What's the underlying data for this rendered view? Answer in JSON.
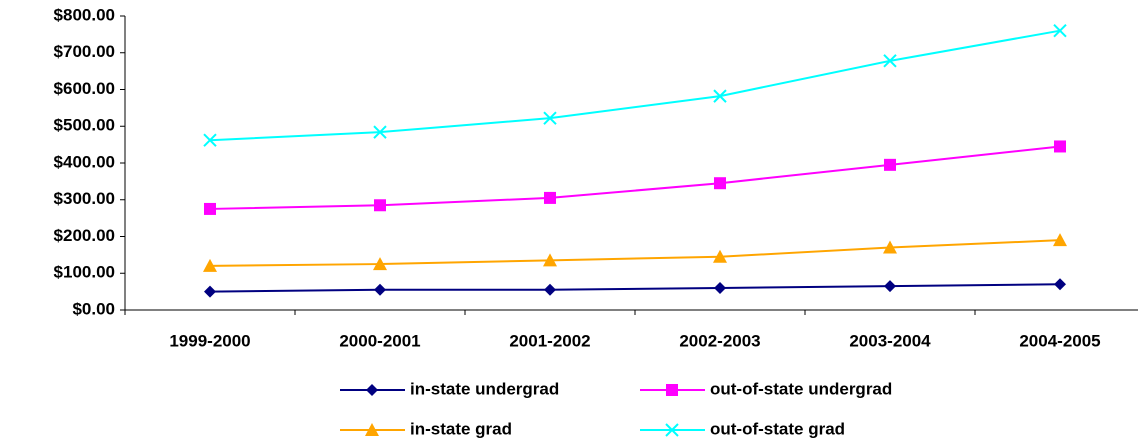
{
  "chart_data": {
    "type": "line",
    "categories": [
      "1999-2000",
      "2000-2001",
      "2001-2002",
      "2002-2003",
      "2003-2004",
      "2004-2005"
    ],
    "series": [
      {
        "name": "in-state undergrad",
        "color": "#000080",
        "marker": "diamond",
        "values": [
          50,
          55,
          55,
          60,
          65,
          70
        ]
      },
      {
        "name": "out-of-state undergrad",
        "color": "#ff00ff",
        "marker": "square",
        "values": [
          275,
          285,
          305,
          345,
          395,
          445
        ]
      },
      {
        "name": "in-state grad",
        "color": "#ffa500",
        "marker": "triangle",
        "values": [
          120,
          125,
          135,
          145,
          170,
          190
        ]
      },
      {
        "name": "out-of-state grad",
        "color": "#00ffff",
        "marker": "x",
        "values": [
          462,
          484,
          522,
          582,
          678,
          760
        ]
      }
    ],
    "ylim": [
      0,
      800
    ],
    "yticks": [
      {
        "value": 0,
        "label": "$0.00"
      },
      {
        "value": 100,
        "label": "$100.00"
      },
      {
        "value": 200,
        "label": "$200.00"
      },
      {
        "value": 300,
        "label": "$300.00"
      },
      {
        "value": 400,
        "label": "$400.00"
      },
      {
        "value": 500,
        "label": "$500.00"
      },
      {
        "value": 600,
        "label": "$600.00"
      },
      {
        "value": 700,
        "label": "$700.00"
      },
      {
        "value": 800,
        "label": "$800.00"
      }
    ],
    "legend": "bottom"
  }
}
